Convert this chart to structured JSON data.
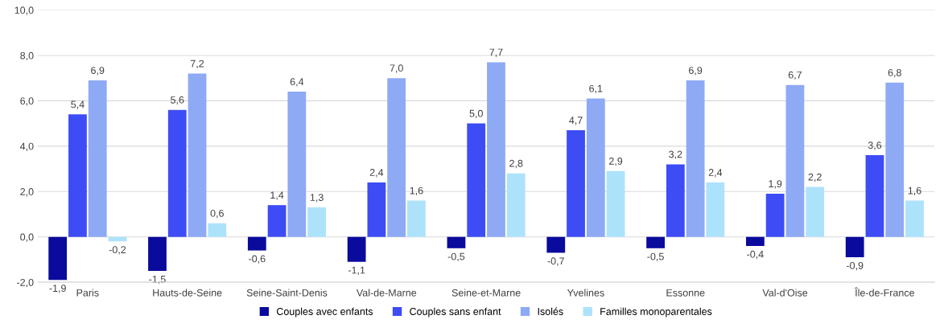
{
  "chart_data": {
    "type": "bar",
    "categories": [
      "Paris",
      "Hauts-de-Seine",
      "Seine-Saint-Denis",
      "Val-de-Marne",
      "Seine-et-Marne",
      "Yvelines",
      "Essonne",
      "Val-d'Oise",
      "Île-de-France"
    ],
    "series": [
      {
        "name": "Couples avec enfants",
        "color": "#0a0a9c",
        "values": [
          -1.9,
          -1.5,
          -0.6,
          -1.1,
          -0.5,
          -0.7,
          -0.5,
          -0.4,
          -0.9
        ],
        "value_labels": [
          "-1,9",
          "-1,5",
          "-0,6",
          "-1,1",
          "-0,5",
          "-0,7",
          "-0,5",
          "-0,4",
          "-0,9"
        ]
      },
      {
        "name": "Couples sans enfant",
        "color": "#3d4cf5",
        "values": [
          5.4,
          5.6,
          1.4,
          2.4,
          5.0,
          4.7,
          3.2,
          1.9,
          3.6
        ],
        "value_labels": [
          "5,4",
          "5,6",
          "1,4",
          "2,4",
          "5,0",
          "4,7",
          "3,2",
          "1,9",
          "3,6"
        ]
      },
      {
        "name": "Isolés",
        "color": "#8eaaf5",
        "values": [
          6.9,
          7.2,
          6.4,
          7.0,
          7.7,
          6.1,
          6.9,
          6.7,
          6.8
        ],
        "value_labels": [
          "6,9",
          "7,2",
          "6,4",
          "7,0",
          "7,7",
          "6,1",
          "6,9",
          "6,7",
          "6,8"
        ]
      },
      {
        "name": "Familles monoparentales",
        "color": "#ade2fb",
        "values": [
          -0.2,
          0.6,
          1.3,
          1.6,
          2.8,
          2.9,
          2.4,
          2.2,
          1.6
        ],
        "value_labels": [
          "-0,2",
          "0,6",
          "1,3",
          "1,6",
          "2,8",
          "2,9",
          "2,4",
          "2,2",
          "1,6"
        ]
      }
    ],
    "ylim": [
      -2,
      10
    ],
    "yticks": [
      {
        "value": -2,
        "label": "-2,0"
      },
      {
        "value": 0,
        "label": "0,0"
      },
      {
        "value": 2,
        "label": "2,0"
      },
      {
        "value": 4,
        "label": "4,0"
      },
      {
        "value": 6,
        "label": "6,0"
      },
      {
        "value": 8,
        "label": "8,0"
      },
      {
        "value": 10,
        "label": "10,0"
      }
    ],
    "grid": "y",
    "legend": "bottom"
  }
}
